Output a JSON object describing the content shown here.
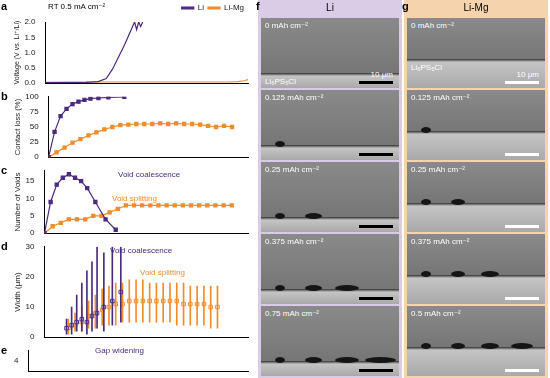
{
  "chart_data": [
    {
      "panel": "a",
      "type": "line",
      "title": "RT 0.5 mA cm⁻²",
      "y_label": "Voltage (V vs. Li⁺/Li)",
      "xlim": [
        0,
        1
      ],
      "ylim": [
        0,
        2
      ],
      "yticks": [
        {
          "value": 0,
          "label": "0.0"
        },
        {
          "value": 0.5,
          "label": "0.5"
        },
        {
          "value": 1,
          "label": "1.0"
        },
        {
          "value": 1.5,
          "label": "1.5"
        },
        {
          "value": 2,
          "label": "2.0"
        }
      ],
      "tick_labels": "y",
      "grid": false,
      "legend": "top-right",
      "series": [
        {
          "name": "Li",
          "color": "#4b2a80",
          "marker": "none",
          "line_style": "solid",
          "x": [
            0,
            0.1,
            0.2,
            0.26,
            0.3,
            0.33,
            0.36,
            0.39,
            0.41,
            0.43,
            0.44,
            0.45,
            0.46,
            0.47,
            0.48
          ],
          "values": [
            0.02,
            0.02,
            0.03,
            0.05,
            0.15,
            0.45,
            0.85,
            1.25,
            1.55,
            1.85,
            2.0,
            1.75,
            2.0,
            1.85,
            2.0
          ]
        },
        {
          "name": "Li-Mg",
          "color": "#f08c2a",
          "marker": "none",
          "line_style": "solid",
          "x": [
            0,
            0.1,
            0.2,
            0.3,
            0.4,
            0.5,
            0.6,
            0.7,
            0.8,
            0.9,
            0.95,
            0.98,
            1
          ],
          "values": [
            0.03,
            0.04,
            0.04,
            0.04,
            0.04,
            0.04,
            0.04,
            0.04,
            0.04,
            0.04,
            0.05,
            0.08,
            0.12
          ]
        }
      ]
    },
    {
      "panel": "b",
      "type": "line",
      "y_label": "Contact loss (%)",
      "xlim": [
        0,
        1
      ],
      "ylim": [
        0,
        100
      ],
      "yticks": [
        0,
        25,
        50,
        75,
        100
      ],
      "tick_labels": "y",
      "grid": false,
      "series": [
        {
          "name": "Li",
          "color": "#4b2a80",
          "marker": "square",
          "line_style": "solid",
          "x": [
            0,
            0.03,
            0.06,
            0.09,
            0.12,
            0.15,
            0.18,
            0.21,
            0.25,
            0.3,
            0.38
          ],
          "values": [
            0,
            42,
            68,
            80,
            88,
            92,
            95,
            97,
            98,
            99,
            100
          ]
        },
        {
          "name": "Li-Mg",
          "color": "#f08c2a",
          "marker": "square",
          "line_style": "solid",
          "x": [
            0,
            0.04,
            0.08,
            0.12,
            0.16,
            0.2,
            0.24,
            0.28,
            0.32,
            0.36,
            0.4,
            0.44,
            0.48,
            0.52,
            0.56,
            0.6,
            0.64,
            0.68,
            0.72,
            0.76,
            0.8,
            0.84,
            0.88,
            0.92
          ],
          "values": [
            0,
            8,
            16,
            24,
            30,
            36,
            41,
            46,
            50,
            53,
            54,
            55,
            55,
            55,
            56,
            55,
            56,
            55,
            55,
            54,
            52,
            50,
            52,
            50
          ]
        }
      ]
    },
    {
      "panel": "c",
      "type": "line",
      "y_label": "Number of Voids",
      "xlim": [
        0,
        1
      ],
      "ylim": [
        0,
        18
      ],
      "yticks": [
        0,
        5,
        10,
        15
      ],
      "tick_labels": "y",
      "grid": false,
      "annotations": [
        {
          "text": "Void coalescence",
          "color": "#4b2a80"
        },
        {
          "text": "Void splitting",
          "color": "#f08c2a"
        }
      ],
      "series": [
        {
          "name": "Li",
          "color": "#4b2a80",
          "marker": "square",
          "line_style": "solid",
          "x": [
            0,
            0.03,
            0.06,
            0.09,
            0.12,
            0.15,
            0.18,
            0.21,
            0.25,
            0.3,
            0.35
          ],
          "values": [
            0,
            9,
            14,
            16,
            17,
            16,
            15,
            13,
            9,
            4,
            1
          ]
        },
        {
          "name": "Li-Mg",
          "color": "#f08c2a",
          "marker": "square",
          "line_style": "solid",
          "x": [
            0,
            0.04,
            0.08,
            0.12,
            0.16,
            0.2,
            0.24,
            0.28,
            0.32,
            0.36,
            0.4,
            0.44,
            0.48,
            0.52,
            0.56,
            0.6,
            0.64,
            0.68,
            0.72,
            0.76,
            0.8,
            0.84,
            0.88,
            0.92
          ],
          "values": [
            0,
            2,
            3,
            4,
            4,
            4,
            5,
            5,
            6,
            7,
            8,
            8,
            8,
            8,
            8,
            8,
            8,
            8,
            8,
            8,
            8,
            8,
            8,
            8
          ]
        }
      ]
    },
    {
      "panel": "d",
      "type": "box",
      "y_label": "Width (μm)",
      "xlim": [
        0,
        1
      ],
      "ylim": [
        0,
        30
      ],
      "yticks": [
        0,
        10,
        20,
        30
      ],
      "tick_labels": "y",
      "grid": false,
      "annotations": [
        {
          "text": "Void coalescence",
          "color": "#4b2a80"
        },
        {
          "text": "Void splitting",
          "color": "#f08c2a"
        }
      ],
      "series": [
        {
          "name": "Li",
          "color": "#4b2a80",
          "marker": "square",
          "x": [
            0.03,
            0.06,
            0.09,
            0.12,
            0.15,
            0.18,
            0.21,
            0.25,
            0.3,
            0.35
          ],
          "values": [
            3,
            4,
            5,
            6,
            5,
            7,
            8,
            10,
            12,
            15
          ],
          "ranges": [
            [
              1,
              6
            ],
            [
              1,
              10
            ],
            [
              2,
              14
            ],
            [
              2,
              18
            ],
            [
              1,
              22
            ],
            [
              2,
              25
            ],
            [
              3,
              30
            ],
            [
              2,
              28
            ],
            [
              4,
              30
            ],
            [
              5,
              30
            ]
          ]
        },
        {
          "name": "Li-Mg",
          "color": "#f08c2a",
          "marker": "square",
          "x": [
            0.04,
            0.08,
            0.12,
            0.16,
            0.2,
            0.24,
            0.28,
            0.32,
            0.36,
            0.4,
            0.44,
            0.48,
            0.52,
            0.56,
            0.6,
            0.64,
            0.68,
            0.72,
            0.76,
            0.8,
            0.84,
            0.88,
            0.92
          ],
          "values": [
            3,
            4,
            5,
            7,
            8,
            9,
            10,
            11,
            11,
            12,
            12,
            12,
            12,
            12,
            12,
            12,
            12,
            11,
            11,
            11,
            11,
            10,
            10
          ],
          "ranges": [
            [
              1,
              6
            ],
            [
              2,
              8
            ],
            [
              2,
              10
            ],
            [
              3,
              12
            ],
            [
              3,
              14
            ],
            [
              4,
              16
            ],
            [
              4,
              17
            ],
            [
              4,
              18
            ],
            [
              5,
              18
            ],
            [
              5,
              19
            ],
            [
              5,
              19
            ],
            [
              5,
              19
            ],
            [
              5,
              18
            ],
            [
              5,
              18
            ],
            [
              5,
              18
            ],
            [
              5,
              18
            ],
            [
              4,
              18
            ],
            [
              4,
              18
            ],
            [
              4,
              17
            ],
            [
              4,
              17
            ],
            [
              4,
              17
            ],
            [
              3,
              17
            ],
            [
              3,
              17
            ]
          ]
        }
      ]
    },
    {
      "panel": "e",
      "type": "line",
      "xlim": [
        0,
        1
      ],
      "ylim": [
        3,
        5
      ],
      "yticks": [
        4
      ],
      "tick_labels": "y",
      "grid": false,
      "annotations": [
        {
          "text": "Gap widening",
          "color": "#4b2a80"
        }
      ],
      "series": []
    }
  ],
  "image_panels": [
    {
      "panel": "f",
      "title": "Li",
      "color": "#d8cce6",
      "labels": [
        "0 mAh cm⁻²",
        "0.125 mAh cm⁻²",
        "0.25 mAh cm⁻²",
        "0.375 mAh cm⁻²",
        "0.75 mAh cm⁻²"
      ],
      "electrolyte": "Li₆PS₅Cl",
      "scale_bar": "10 μm"
    },
    {
      "panel": "g",
      "title": "Li-Mg",
      "color": "#f5d3ad",
      "labels": [
        "0 mAh cm⁻²",
        "0.125 mAh cm⁻²",
        "0.25 mAh cm⁻²",
        "0.375 mAh cm⁻²",
        "0.5 mAh cm⁻²"
      ],
      "electrolyte": "Li₆PS₅Cl",
      "scale_bar": "10 μm"
    }
  ]
}
